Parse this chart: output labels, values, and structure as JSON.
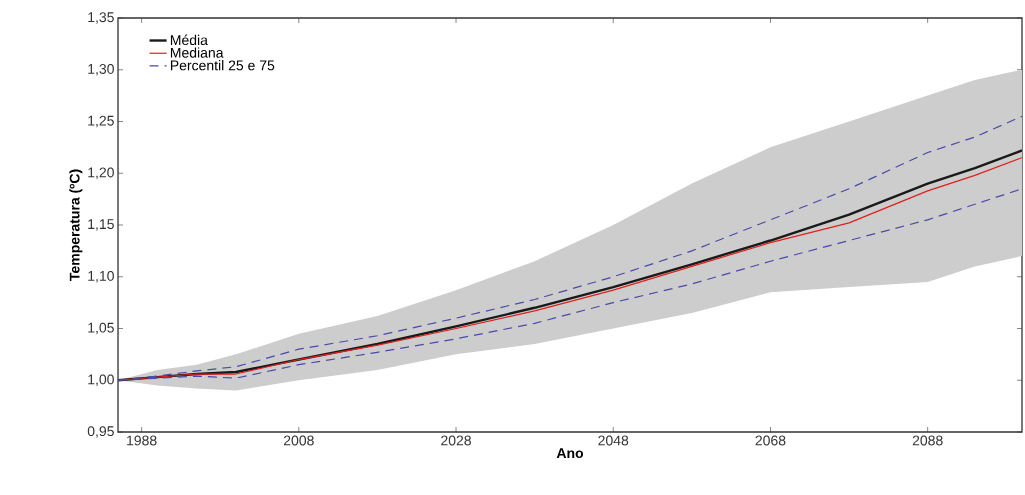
{
  "chart_data": {
    "type": "line",
    "xlabel": "Ano",
    "ylabel": "Temperatura (ºC)",
    "x": [
      1985,
      1990,
      1995,
      2000,
      2008,
      2018,
      2028,
      2038,
      2048,
      2058,
      2068,
      2078,
      2088,
      2094,
      2100
    ],
    "series": [
      {
        "name": "Média",
        "color": "#1a1a1a",
        "values": [
          1.0,
          1.003,
          1.006,
          1.008,
          1.02,
          1.035,
          1.052,
          1.07,
          1.09,
          1.112,
          1.135,
          1.16,
          1.19,
          1.205,
          1.222
        ],
        "lower": [
          1.0,
          0.995,
          0.992,
          0.99,
          1.0,
          1.01,
          1.025,
          1.035,
          1.05,
          1.065,
          1.085,
          1.09,
          1.095,
          1.11,
          1.12
        ],
        "upper": [
          1.0,
          1.01,
          1.015,
          1.025,
          1.045,
          1.062,
          1.087,
          1.115,
          1.15,
          1.19,
          1.225,
          1.25,
          1.275,
          1.29,
          1.3
        ]
      },
      {
        "name": "Mediana",
        "color": "#e0201c",
        "values": [
          1.0,
          1.003,
          1.006,
          1.006,
          1.02,
          1.034,
          1.05,
          1.067,
          1.087,
          1.11,
          1.133,
          1.152,
          1.183,
          1.198,
          1.215
        ]
      },
      {
        "name": "Percentil 25 e 75",
        "color": "#4a4aa8",
        "line_style": "dashed",
        "values": [
          1.0,
          1.004,
          1.009,
          1.013,
          1.03,
          1.043,
          1.06,
          1.078,
          1.1,
          1.125,
          1.155,
          1.185,
          1.22,
          1.235,
          1.255
        ]
      },
      {
        "color": "#4a4aa8",
        "line_style": "dashed",
        "values": [
          1.0,
          1.002,
          1.004,
          1.002,
          1.015,
          1.027,
          1.04,
          1.055,
          1.075,
          1.093,
          1.115,
          1.135,
          1.155,
          1.17,
          1.185
        ]
      }
    ],
    "xlim": [
      1985,
      2100
    ],
    "xticks": [
      1988,
      2008,
      2028,
      2048,
      2068,
      2088
    ],
    "ylim": [
      0.95,
      1.35
    ],
    "yticks": [
      {
        "value": 0.95,
        "label": "0,95"
      },
      {
        "value": 1.0,
        "label": "1,00"
      },
      {
        "value": 1.05,
        "label": "1,05"
      },
      {
        "value": 1.1,
        "label": "1,10"
      },
      {
        "value": 1.15,
        "label": "1,15"
      },
      {
        "value": 1.2,
        "label": "1,20"
      },
      {
        "value": 1.25,
        "label": "1,25"
      },
      {
        "value": 1.3,
        "label": "1,30"
      },
      {
        "value": 1.35,
        "label": "1,35"
      }
    ],
    "legend": "top left",
    "grid": false
  }
}
